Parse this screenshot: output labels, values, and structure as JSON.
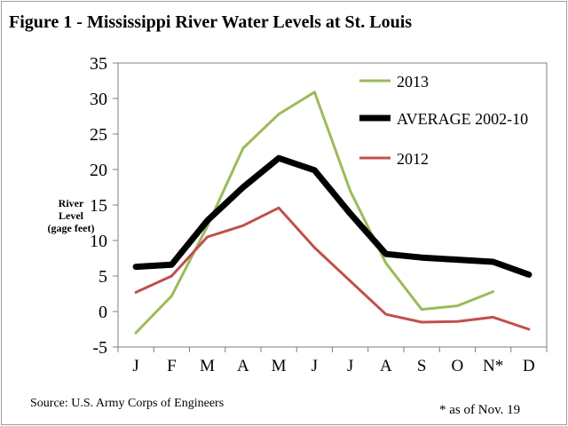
{
  "title": "Figure  1 - Mississippi River Water Levels at St. Louis",
  "source": "Source: U.S. Army Corps of Engineers",
  "footnote": "* as of Nov. 19",
  "chart_data": {
    "type": "line",
    "title": "Figure  1 - Mississippi River Water Levels at St. Louis",
    "ylabel_lines": [
      "River",
      "Level",
      "(gage feet)"
    ],
    "xlabel": "",
    "categories": [
      "J",
      "F",
      "M",
      "A",
      "M",
      "J",
      "J",
      "A",
      "S",
      "O",
      "N*",
      "D"
    ],
    "ylim": [
      -5,
      35
    ],
    "yticks": [
      -5,
      0,
      5,
      10,
      15,
      20,
      25,
      30,
      35
    ],
    "grid": false,
    "legend_position": "top-right",
    "series": [
      {
        "name": "2013",
        "color": "#9bbb59",
        "values": [
          -3,
          2.2,
          12,
          23,
          27.8,
          30.9,
          17,
          6.8,
          0.3,
          0.8,
          2.8,
          null
        ]
      },
      {
        "name": "AVERAGE 2002-10",
        "color": "#000000",
        "values": [
          6.3,
          6.6,
          12.8,
          17.5,
          21.6,
          19.9,
          13.8,
          8.1,
          7.6,
          7.3,
          7.0,
          5.2
        ]
      },
      {
        "name": "2012",
        "color": "#c0504d",
        "values": [
          2.7,
          5.0,
          10.5,
          12.1,
          14.6,
          9.0,
          4.3,
          -0.4,
          -1.5,
          -1.4,
          -0.8,
          -2.5
        ]
      }
    ]
  }
}
